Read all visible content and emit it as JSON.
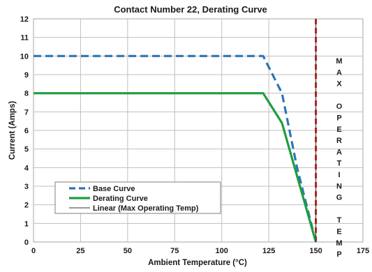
{
  "chart_data": {
    "type": "line",
    "title": "Contact Number 22, Derating Curve",
    "xlabel": "Ambient Temperature (°C)",
    "ylabel": "Current (Amps)",
    "xlim": [
      0,
      175
    ],
    "ylim": [
      0,
      12
    ],
    "x_ticks": [
      "0",
      "25",
      "50",
      "75",
      "100",
      "125",
      "150",
      "175"
    ],
    "y_ticks": [
      "0",
      "1",
      "2",
      "3",
      "4",
      "5",
      "6",
      "7",
      "8",
      "9",
      "10",
      "11",
      "12"
    ],
    "grid": true,
    "legend_position": "bottom-left",
    "series": [
      {
        "name": "Base Curve",
        "style": "dashed",
        "color": "#2E75B6",
        "points": [
          [
            0,
            10
          ],
          [
            122,
            10
          ],
          [
            132,
            8
          ],
          [
            140,
            4
          ],
          [
            150,
            0
          ]
        ]
      },
      {
        "name": "Derating Curve",
        "style": "solid",
        "color": "#1E9E3E",
        "points": [
          [
            0,
            8
          ],
          [
            122,
            8
          ],
          [
            132,
            6.4
          ],
          [
            150,
            0
          ]
        ]
      },
      {
        "name": "Linear (Max Operating Temp)",
        "style": "solid-thin",
        "color": "#333333",
        "points": [
          [
            150,
            0
          ],
          [
            150,
            12
          ]
        ]
      }
    ],
    "max_line": {
      "x": 150,
      "color": "#E8201C",
      "style": "dashed"
    },
    "annotation": {
      "text": "MAX OPERATING TEMP",
      "letters": [
        "M",
        "A",
        "X",
        "",
        "O",
        "P",
        "E",
        "R",
        "A",
        "T",
        "I",
        "N",
        "G",
        "",
        "T",
        "E",
        "M",
        "P"
      ]
    }
  }
}
